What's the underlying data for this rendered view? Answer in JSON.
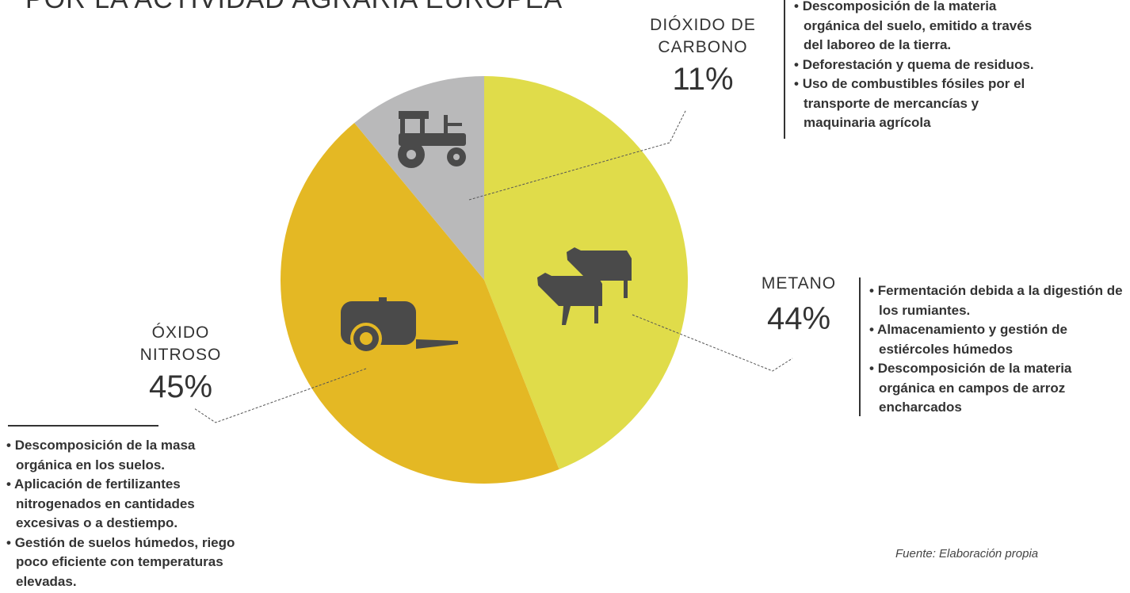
{
  "chart_data": {
    "type": "pie",
    "title": "POR LA ACTIVIDAD AGRARIA EUROPEA",
    "categories": [
      "METANO",
      "ÓXIDO NITROSO",
      "DIÓXIDO DE CARBONO"
    ],
    "values": [
      44,
      45,
      11
    ],
    "value_labels": [
      "44%",
      "45%",
      "11%"
    ],
    "colors": [
      "#e0dc4a",
      "#e4b824",
      "#b9b9ba"
    ],
    "descriptions": [
      [
        "Fermentación debida a la digestión de los rumiantes.",
        "Almacenamiento y gestión de estiércoles húmedos",
        "Descomposición de la materia orgánica en campos de arroz encharcados"
      ],
      [
        "Descomposición de la masa orgánica en los suelos.",
        "Aplicación de fertilizantes nitrogenados en cantidades excesivas o a destiempo.",
        "Gestión de suelos húmedos, riego poco eficiente con temperaturas elevadas."
      ],
      [
        "Descomposición de la materia orgánica del suelo, emitido a través del laboreo de la tierra.",
        "Deforestación y quema de residuos.",
        "Uso de combustibles fósiles por el transporte de mercancías y maquinaria agrícola"
      ]
    ],
    "source": "Fuente: Elaboración propia"
  }
}
